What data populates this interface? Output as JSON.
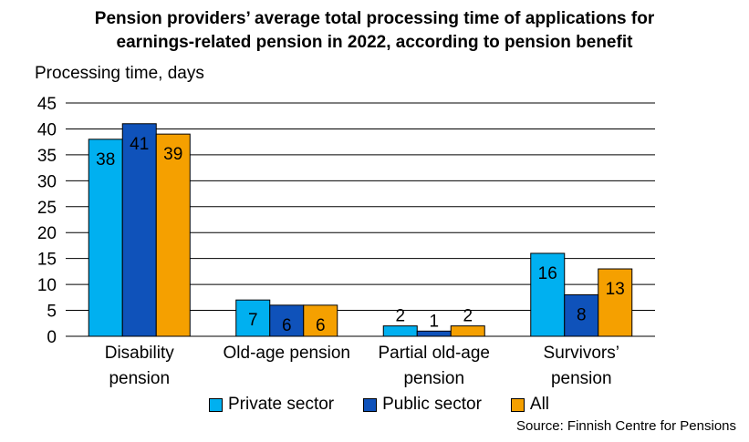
{
  "chart_data": {
    "type": "bar",
    "title_line1": "Pension providers’ average total processing time of applications for",
    "title_line2": "earnings-related pension in 2022,  according to pension benefit",
    "ylabel": "Processing time, days",
    "xlabel": "",
    "ylim": [
      0,
      45
    ],
    "yticks": [
      0,
      5,
      10,
      15,
      20,
      25,
      30,
      35,
      40,
      45
    ],
    "grid": true,
    "legend_placement": "bottom",
    "categories": [
      {
        "line1": "Disability",
        "line2": "pension"
      },
      {
        "line1": "Old-age pension",
        "line2": ""
      },
      {
        "line1": "Partial old-age",
        "line2": "pension"
      },
      {
        "line1": "Survivors’",
        "line2": "pension"
      }
    ],
    "series": [
      {
        "name": "Private sector",
        "color": "#00b0f0",
        "values": [
          38,
          7,
          2,
          16
        ]
      },
      {
        "name": "Public sector",
        "color": "#0f52ba",
        "values": [
          41,
          6,
          1,
          8
        ]
      },
      {
        "name": "All",
        "color": "#f5a000",
        "values": [
          39,
          6,
          2,
          13
        ]
      }
    ],
    "source": "Source: Finnish Centre for Pensions"
  }
}
